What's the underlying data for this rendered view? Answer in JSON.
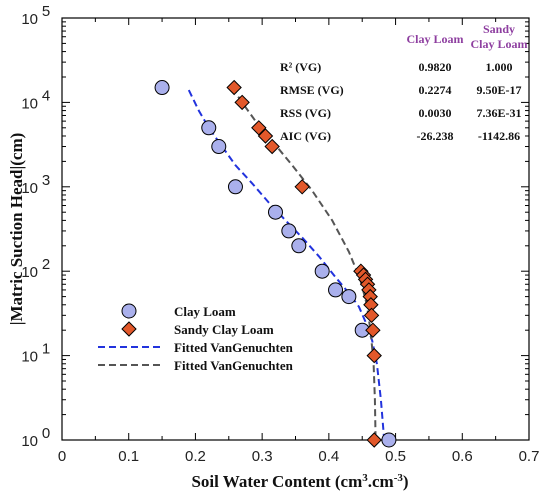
{
  "chart_data": {
    "type": "scatter",
    "xlabel": "Soil Water Content (cm",
    "xlabel_sup1": "3",
    "xlabel_mid": ".cm",
    "xlabel_sup2": "-3",
    "xlabel_end": ")",
    "ylabel": "|Matric Suction Head|(cm)",
    "xlim": [
      0,
      0.7
    ],
    "ylim_log10": [
      0,
      5
    ],
    "y_scale": "log",
    "x_ticks": [
      "0",
      "0.1",
      "0.2",
      "0.3",
      "0.4",
      "0.5",
      "0.6",
      "0.7"
    ],
    "y_ticks": [
      {
        "base": "10",
        "exp": "0"
      },
      {
        "base": "10",
        "exp": "1"
      },
      {
        "base": "10",
        "exp": "2"
      },
      {
        "base": "10",
        "exp": "3"
      },
      {
        "base": "10",
        "exp": "4"
      },
      {
        "base": "10",
        "exp": "5"
      }
    ],
    "series": [
      {
        "name": "Clay Loam",
        "kind": "points",
        "marker": "circle",
        "color": "#aab0ec",
        "x": [
          0.15,
          0.22,
          0.235,
          0.26,
          0.32,
          0.34,
          0.355,
          0.39,
          0.41,
          0.43,
          0.45,
          0.49
        ],
        "y": [
          15000,
          5000,
          3000,
          1000,
          500,
          300,
          200,
          100,
          60,
          50,
          20,
          1
        ]
      },
      {
        "name": "Sandy Clay Loam",
        "kind": "points",
        "marker": "diamond",
        "color": "#e2582a",
        "x": [
          0.258,
          0.27,
          0.295,
          0.305,
          0.315,
          0.36,
          0.448,
          0.452,
          0.455,
          0.458,
          0.46,
          0.462,
          0.463,
          0.464,
          0.466,
          0.468,
          0.468
        ],
        "y": [
          15000,
          10000,
          5000,
          4000,
          3000,
          1000,
          100,
          90,
          80,
          70,
          60,
          50,
          40,
          30,
          20,
          10,
          1
        ]
      },
      {
        "name": "Fitted VanGenuchten",
        "kind": "line",
        "dash": "blue",
        "color": "#2233dd",
        "x": [
          0.19,
          0.205,
          0.22,
          0.24,
          0.26,
          0.285,
          0.31,
          0.335,
          0.36,
          0.385,
          0.41,
          0.43,
          0.445,
          0.455,
          0.465,
          0.472,
          0.478,
          0.483
        ],
        "y": [
          14000,
          8000,
          5000,
          3000,
          1800,
          1100,
          650,
          400,
          250,
          150,
          85,
          55,
          38,
          25,
          15,
          8,
          3,
          1
        ]
      },
      {
        "name": "Fitted VanGenuchten",
        "kind": "line",
        "dash": "gray",
        "color": "#555555",
        "x": [
          0.255,
          0.27,
          0.29,
          0.315,
          0.345,
          0.375,
          0.405,
          0.43,
          0.447,
          0.457,
          0.463,
          0.467,
          0.469,
          0.47
        ],
        "y": [
          15000,
          10000,
          6000,
          3500,
          1800,
          900,
          400,
          170,
          80,
          40,
          18,
          8,
          3,
          1
        ]
      }
    ],
    "legend_position": "bottom-left",
    "legend": [
      {
        "label": "Clay Loam",
        "kind": "circle",
        "color": "#aab0ec"
      },
      {
        "label": "Sandy Clay Loam",
        "kind": "diamond",
        "color": "#e2582a"
      },
      {
        "label": "Fitted VanGenuchten",
        "kind": "line",
        "color": "#2233dd"
      },
      {
        "label": "Fitted VanGenuchten",
        "kind": "line",
        "color": "#555555"
      }
    ],
    "stats_table": {
      "col1_header": "Clay Loam",
      "col2_header_line1": "Sandy",
      "col2_header_line2": "Clay Loam",
      "header_color": "#8e3fa0",
      "rows": [
        {
          "label": "R² (VG)",
          "v1": "0.9820",
          "v2": "1.000"
        },
        {
          "label": "RMSE (VG)",
          "v1": "0.2274",
          "v2": "9.50E-17"
        },
        {
          "label": "RSS (VG)",
          "v1": "0.0030",
          "v2": "7.36E-31"
        },
        {
          "label": "AIC (VG)",
          "v1": "-26.238",
          "v2": "-1142.86"
        }
      ]
    }
  }
}
